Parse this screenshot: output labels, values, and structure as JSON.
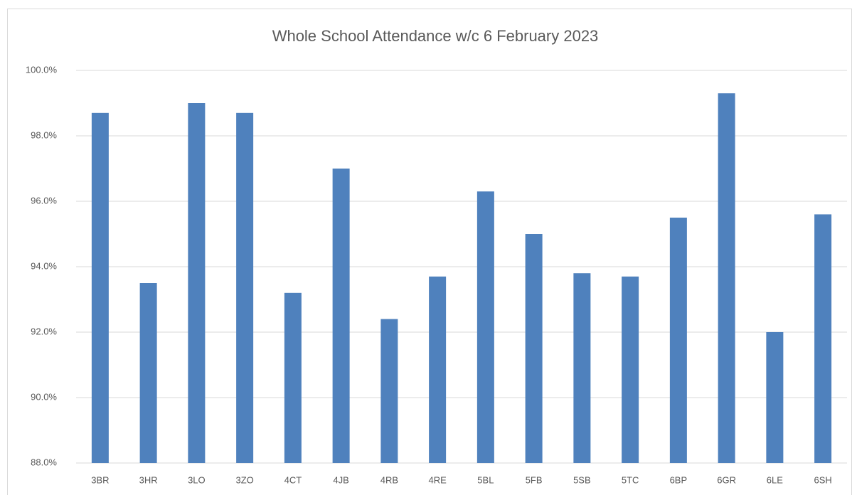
{
  "chart_data": {
    "type": "bar",
    "title": "Whole School Attendance w/c 6 February 2023",
    "categories": [
      "3BR",
      "3HR",
      "3LO",
      "3ZO",
      "4CT",
      "4JB",
      "4RB",
      "4RE",
      "5BL",
      "5FB",
      "5SB",
      "5TC",
      "6BP",
      "6GR",
      "6LE",
      "6SH"
    ],
    "values": [
      98.7,
      93.5,
      99.0,
      98.7,
      93.2,
      97.0,
      92.4,
      93.7,
      96.3,
      95.0,
      93.8,
      93.7,
      95.5,
      99.3,
      92.0,
      95.6
    ],
    "color": "#4f81bd",
    "ylim": [
      88,
      100
    ],
    "yticks": [
      {
        "value": 88,
        "label": "88.0%"
      },
      {
        "value": 90,
        "label": "90.0%"
      },
      {
        "value": 92,
        "label": "92.0%"
      },
      {
        "value": 94,
        "label": "94.0%"
      },
      {
        "value": 96,
        "label": "96.0%"
      },
      {
        "value": 98,
        "label": "98.0%"
      },
      {
        "value": 100,
        "label": "100.0%"
      }
    ],
    "grid": true
  }
}
